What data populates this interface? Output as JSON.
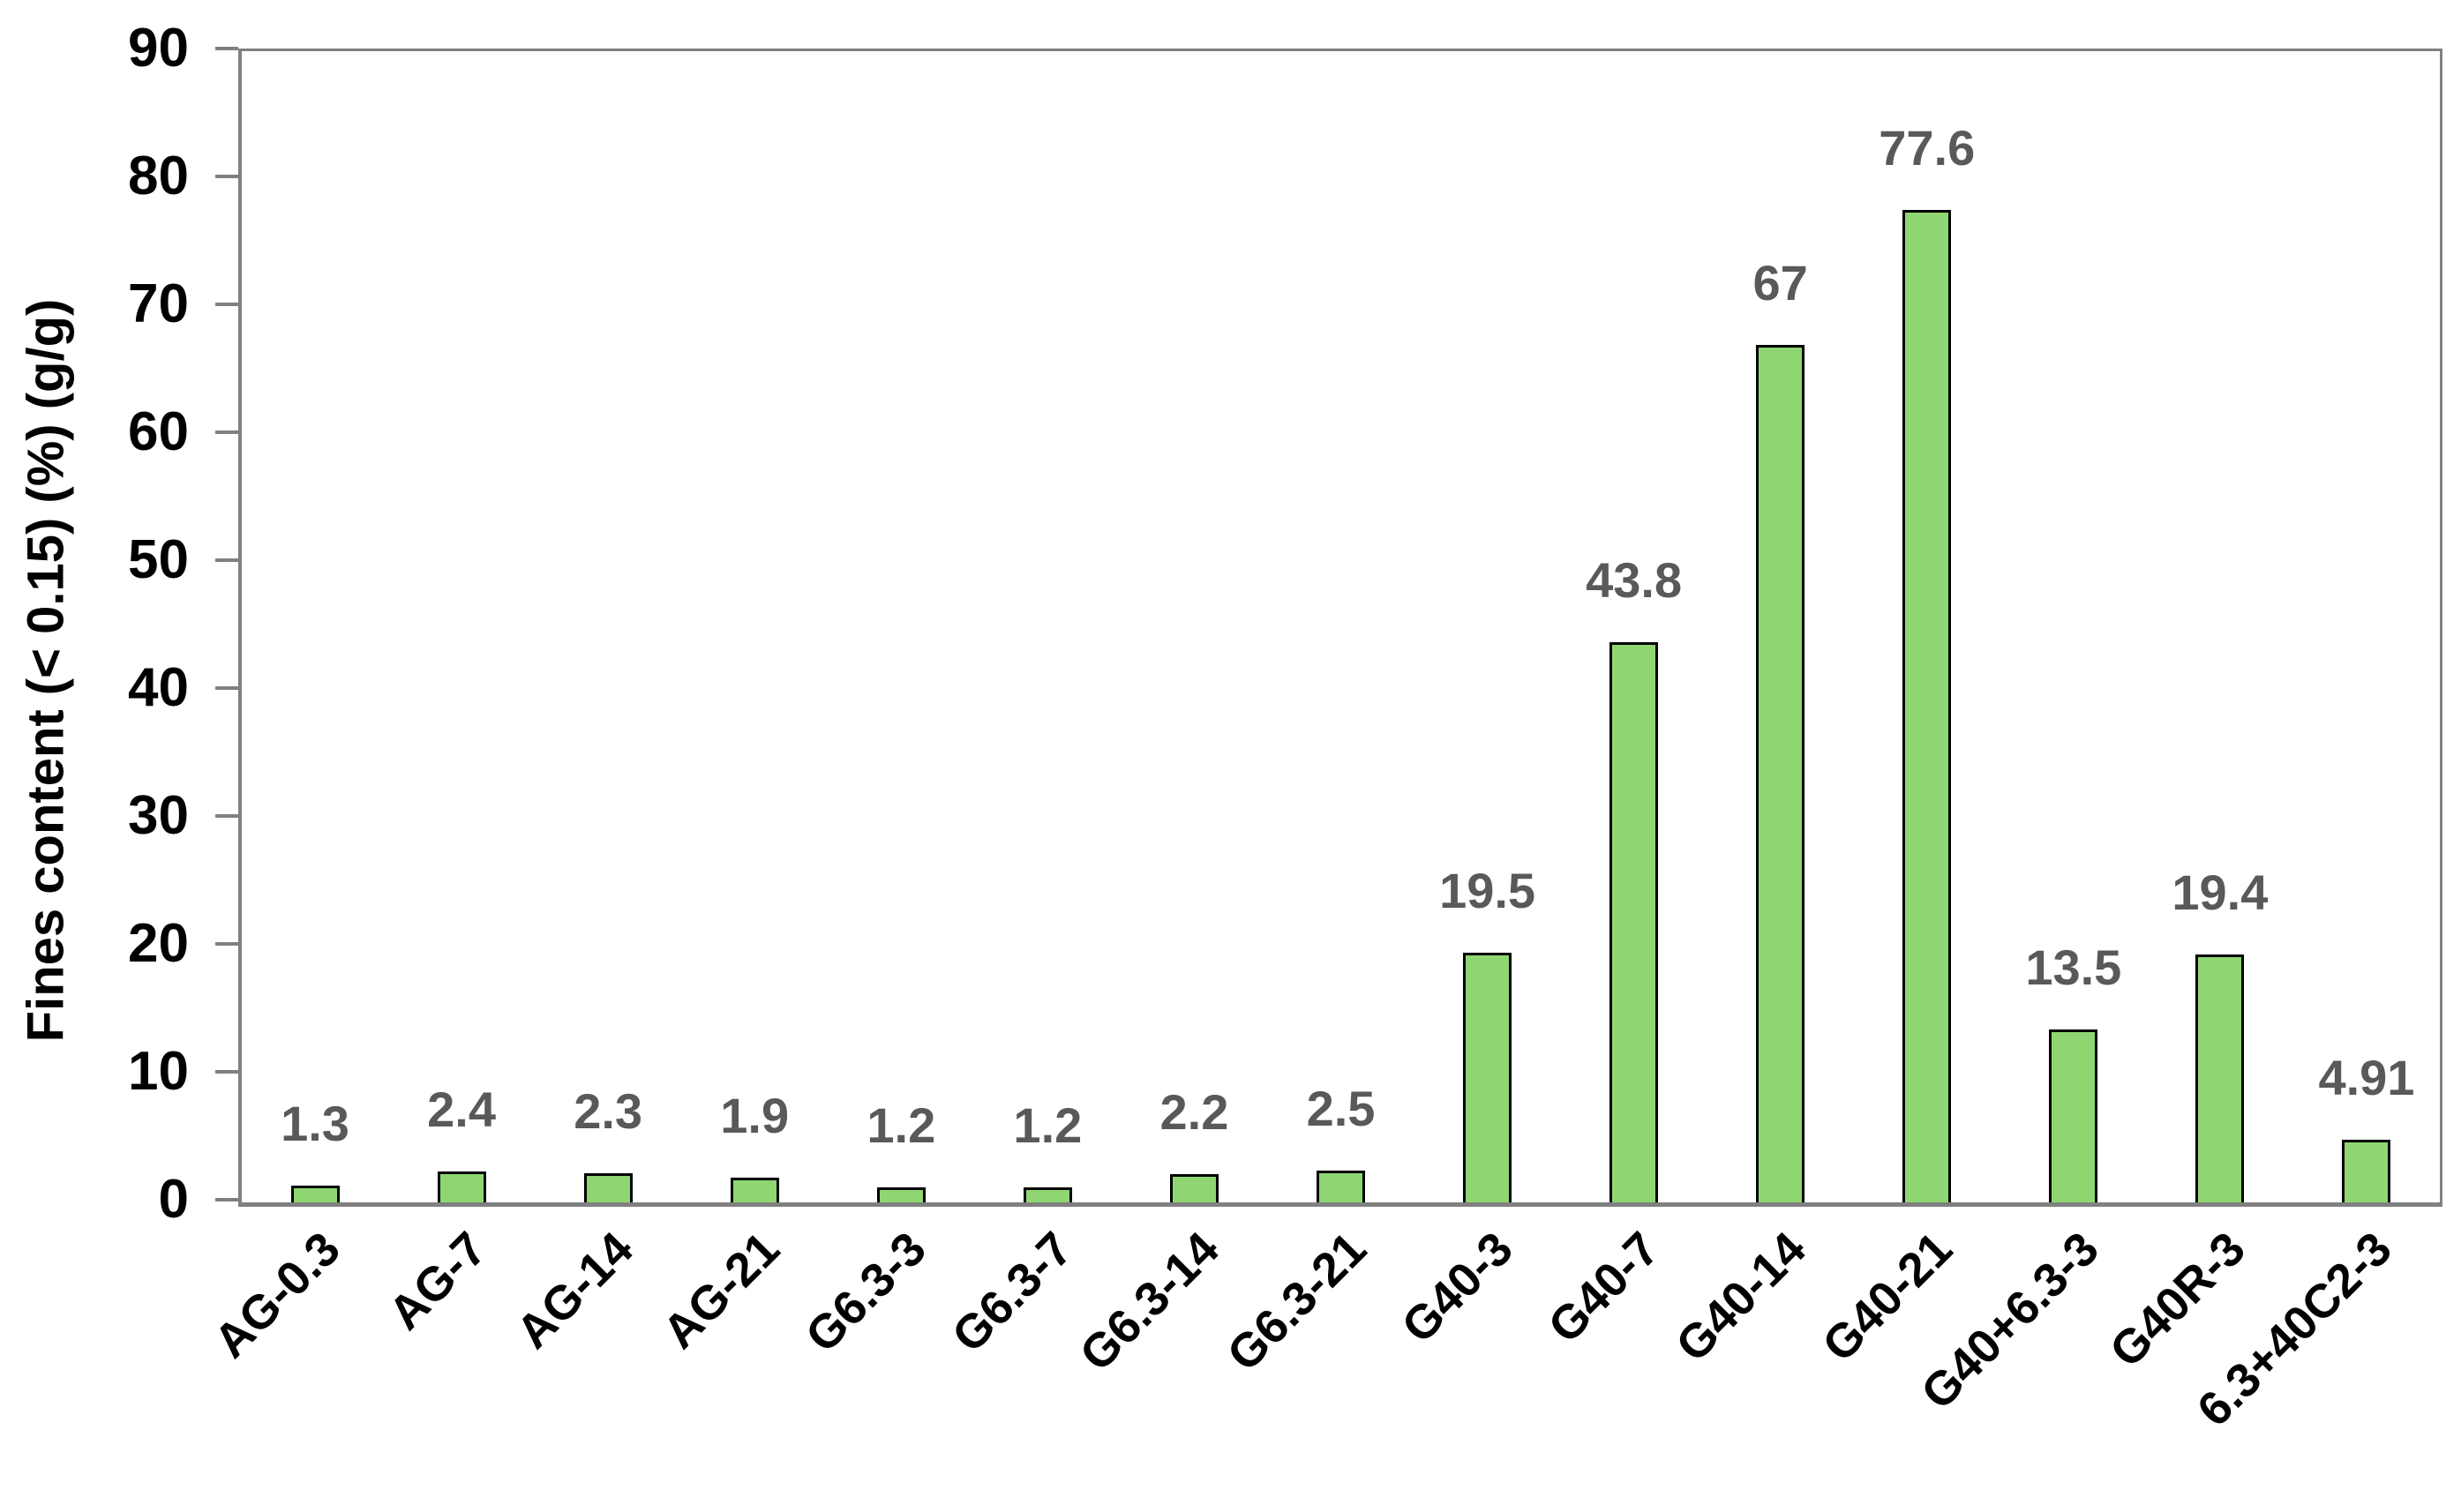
{
  "chart_data": {
    "type": "bar",
    "title": "",
    "categories": [
      "AG-0.3",
      "AG-7",
      "AG-14",
      "AG-21",
      "G6.3-3",
      "G6.3-7",
      "G6.3-14",
      "G6.3-21",
      "G40-3",
      "G40-7",
      "G40-14",
      "G40-21",
      "G40+6.3-3",
      "G40R-3",
      "6.3+40C2-3"
    ],
    "values": [
      1.3,
      2.4,
      2.3,
      1.9,
      1.2,
      1.2,
      2.2,
      2.5,
      19.5,
      43.8,
      67,
      77.6,
      13.5,
      19.4,
      4.91
    ],
    "value_labels": [
      "1.3",
      "2.4",
      "2.3",
      "1.9",
      "1.2",
      "1.2",
      "2.2",
      "2.5",
      "19.5",
      "43.8",
      "67",
      "77.6",
      "13.5",
      "19.4",
      "4.91"
    ],
    "xlabel": "",
    "ylabel": "Fines content (< 0.15) (%) (g/g)",
    "ylim": [
      0,
      90
    ],
    "yticks": [
      0,
      10,
      20,
      30,
      40,
      50,
      60,
      70,
      80,
      90
    ],
    "grid": false,
    "legend": false,
    "colors": {
      "bar_fill": "#8FD673",
      "bar_border": "#000000",
      "axis": "#808080",
      "y_tick_label": "#000000",
      "x_tick_label": "#000000",
      "data_label": "#595959",
      "background": "#FFFFFF"
    }
  }
}
